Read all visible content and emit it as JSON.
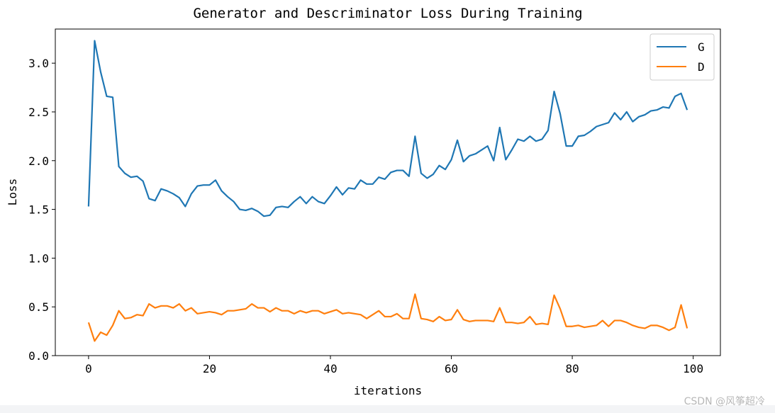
{
  "watermark": "CSDN @风筝超冷",
  "chart_data": {
    "type": "line",
    "title": "Generator and Descriminator Loss During Training",
    "xlabel": "iterations",
    "ylabel": "Loss",
    "xlim": [
      -5.5,
      104.5
    ],
    "ylim": [
      0.0,
      3.35
    ],
    "xticks": [
      0,
      20,
      40,
      60,
      80,
      100
    ],
    "yticks": [
      0.0,
      0.5,
      1.0,
      1.5,
      2.0,
      2.5,
      3.0
    ],
    "xtick_labels": [
      "0",
      "20",
      "40",
      "60",
      "80",
      "100"
    ],
    "ytick_labels": [
      "0.0",
      "0.5",
      "1.0",
      "1.5",
      "2.0",
      "2.5",
      "3.0"
    ],
    "grid": false,
    "legend_position": "top-right",
    "x": [
      0,
      1,
      2,
      3,
      4,
      5,
      6,
      7,
      8,
      9,
      10,
      11,
      12,
      13,
      14,
      15,
      16,
      17,
      18,
      19,
      20,
      21,
      22,
      23,
      24,
      25,
      26,
      27,
      28,
      29,
      30,
      31,
      32,
      33,
      34,
      35,
      36,
      37,
      38,
      39,
      40,
      41,
      42,
      43,
      44,
      45,
      46,
      47,
      48,
      49,
      50,
      51,
      52,
      53,
      54,
      55,
      56,
      57,
      58,
      59,
      60,
      61,
      62,
      63,
      64,
      65,
      66,
      67,
      68,
      69,
      70,
      71,
      72,
      73,
      74,
      75,
      76,
      77,
      78,
      79,
      80,
      81,
      82,
      83,
      84,
      85,
      86,
      87,
      88,
      89,
      90,
      91,
      92,
      93,
      94,
      95,
      96,
      97,
      98,
      99
    ],
    "series": [
      {
        "name": "G",
        "color": "#1f77b4",
        "values": [
          1.53,
          3.23,
          2.91,
          2.66,
          2.65,
          1.94,
          1.87,
          1.83,
          1.84,
          1.79,
          1.61,
          1.59,
          1.71,
          1.69,
          1.66,
          1.62,
          1.53,
          1.66,
          1.74,
          1.75,
          1.75,
          1.8,
          1.69,
          1.63,
          1.58,
          1.5,
          1.49,
          1.51,
          1.48,
          1.43,
          1.44,
          1.52,
          1.53,
          1.52,
          1.58,
          1.63,
          1.56,
          1.63,
          1.58,
          1.56,
          1.64,
          1.73,
          1.65,
          1.72,
          1.71,
          1.8,
          1.76,
          1.76,
          1.83,
          1.81,
          1.88,
          1.9,
          1.9,
          1.84,
          2.25,
          1.87,
          1.82,
          1.86,
          1.95,
          1.91,
          2.01,
          2.21,
          1.99,
          2.05,
          2.07,
          2.11,
          2.15,
          2.0,
          2.34,
          2.01,
          2.11,
          2.22,
          2.2,
          2.25,
          2.2,
          2.22,
          2.31,
          2.71,
          2.48,
          2.15,
          2.15,
          2.25,
          2.26,
          2.3,
          2.35,
          2.37,
          2.39,
          2.49,
          2.42,
          2.5,
          2.4,
          2.45,
          2.47,
          2.51,
          2.52,
          2.55,
          2.54,
          2.66,
          2.69,
          2.52
        ]
      },
      {
        "name": "D",
        "color": "#ff7f0e",
        "values": [
          0.34,
          0.15,
          0.24,
          0.21,
          0.31,
          0.46,
          0.38,
          0.39,
          0.42,
          0.41,
          0.53,
          0.49,
          0.51,
          0.51,
          0.49,
          0.53,
          0.46,
          0.49,
          0.43,
          0.44,
          0.45,
          0.44,
          0.42,
          0.46,
          0.46,
          0.47,
          0.48,
          0.53,
          0.49,
          0.49,
          0.45,
          0.49,
          0.46,
          0.46,
          0.43,
          0.46,
          0.44,
          0.46,
          0.46,
          0.43,
          0.45,
          0.47,
          0.43,
          0.44,
          0.43,
          0.42,
          0.38,
          0.42,
          0.46,
          0.4,
          0.4,
          0.43,
          0.38,
          0.38,
          0.63,
          0.38,
          0.37,
          0.35,
          0.4,
          0.36,
          0.37,
          0.47,
          0.37,
          0.35,
          0.36,
          0.36,
          0.36,
          0.35,
          0.49,
          0.34,
          0.34,
          0.33,
          0.34,
          0.4,
          0.32,
          0.33,
          0.32,
          0.62,
          0.48,
          0.3,
          0.3,
          0.31,
          0.29,
          0.3,
          0.31,
          0.36,
          0.3,
          0.36,
          0.36,
          0.34,
          0.31,
          0.29,
          0.28,
          0.31,
          0.31,
          0.29,
          0.26,
          0.29,
          0.52,
          0.28
        ]
      }
    ]
  }
}
